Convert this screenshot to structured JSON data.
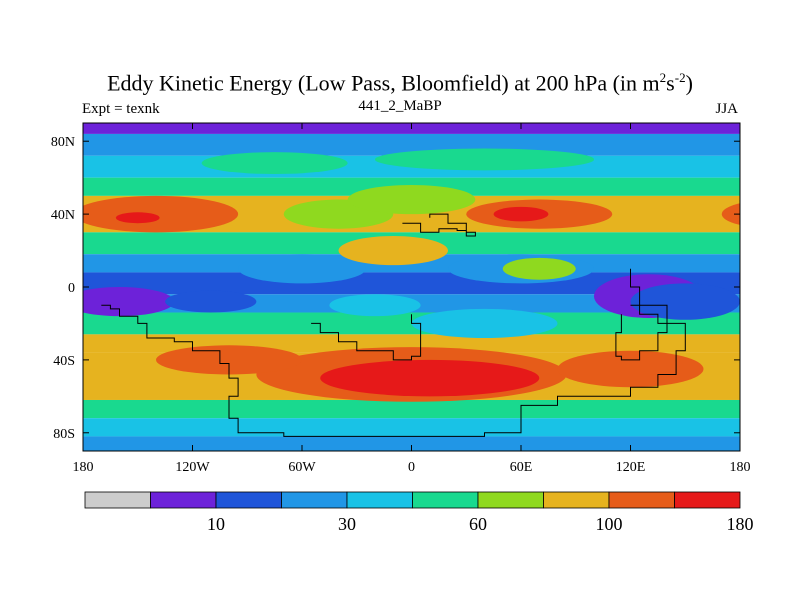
{
  "chart_data": {
    "type": "heatmap",
    "title_prefix": "Eddy Kinetic Energy (Low Pass, Bloomfield) at 200 hPa (in m",
    "title_sup1": "2",
    "title_mid": "s",
    "title_sup2": "-2",
    "title_suffix": ")",
    "subtitle": "441_2_MaBP",
    "left_label": "Expt = texnk",
    "right_label": "JJA",
    "x_range": [
      -180,
      180
    ],
    "y_range": [
      -90,
      90
    ],
    "x_ticks": [
      {
        "value": -180,
        "label": "180"
      },
      {
        "value": -120,
        "label": "120W"
      },
      {
        "value": -60,
        "label": "60W"
      },
      {
        "value": 0,
        "label": "0"
      },
      {
        "value": 60,
        "label": "60E"
      },
      {
        "value": 120,
        "label": "120E"
      },
      {
        "value": 180,
        "label": "180"
      }
    ],
    "y_ticks": [
      {
        "value": 80,
        "label": "80N"
      },
      {
        "value": 40,
        "label": "40N"
      },
      {
        "value": 0,
        "label": "0"
      },
      {
        "value": -40,
        "label": "40S"
      },
      {
        "value": -80,
        "label": "80S"
      }
    ],
    "colorbar": {
      "colors": [
        "#cccccc",
        "#6d22d9",
        "#1f55d9",
        "#2196e6",
        "#19c2e6",
        "#19d98f",
        "#8fd91f",
        "#e6b31f",
        "#e65c19",
        "#e61919"
      ],
      "labels": [
        {
          "boundary": 2,
          "label": "10"
        },
        {
          "boundary": 4,
          "label": "30"
        },
        {
          "boundary": 6,
          "label": "60"
        },
        {
          "boundary": 8,
          "label": "100"
        },
        {
          "boundary": 10,
          "label": "180"
        }
      ]
    },
    "field_features": [
      {
        "name": "base",
        "level": 5
      },
      {
        "name": "southern_storm_track",
        "lon": 0,
        "lat": -48,
        "level": 8
      },
      {
        "name": "southern_core",
        "lon": 10,
        "lat": -50,
        "level": 9
      },
      {
        "name": "north_pacific_jet",
        "lon": -145,
        "lat": 40,
        "level": 8
      },
      {
        "name": "north_pacific_core",
        "lon": -140,
        "lat": 38,
        "level": 9
      },
      {
        "name": "north_atlantic_jet",
        "lon": 70,
        "lat": 40,
        "level": 8
      },
      {
        "name": "tropical_east_pacific_min",
        "lon": -160,
        "lat": -8,
        "level": 1
      },
      {
        "name": "tropical_maritime_min",
        "lon": 130,
        "lat": -5,
        "level": 1
      }
    ]
  }
}
